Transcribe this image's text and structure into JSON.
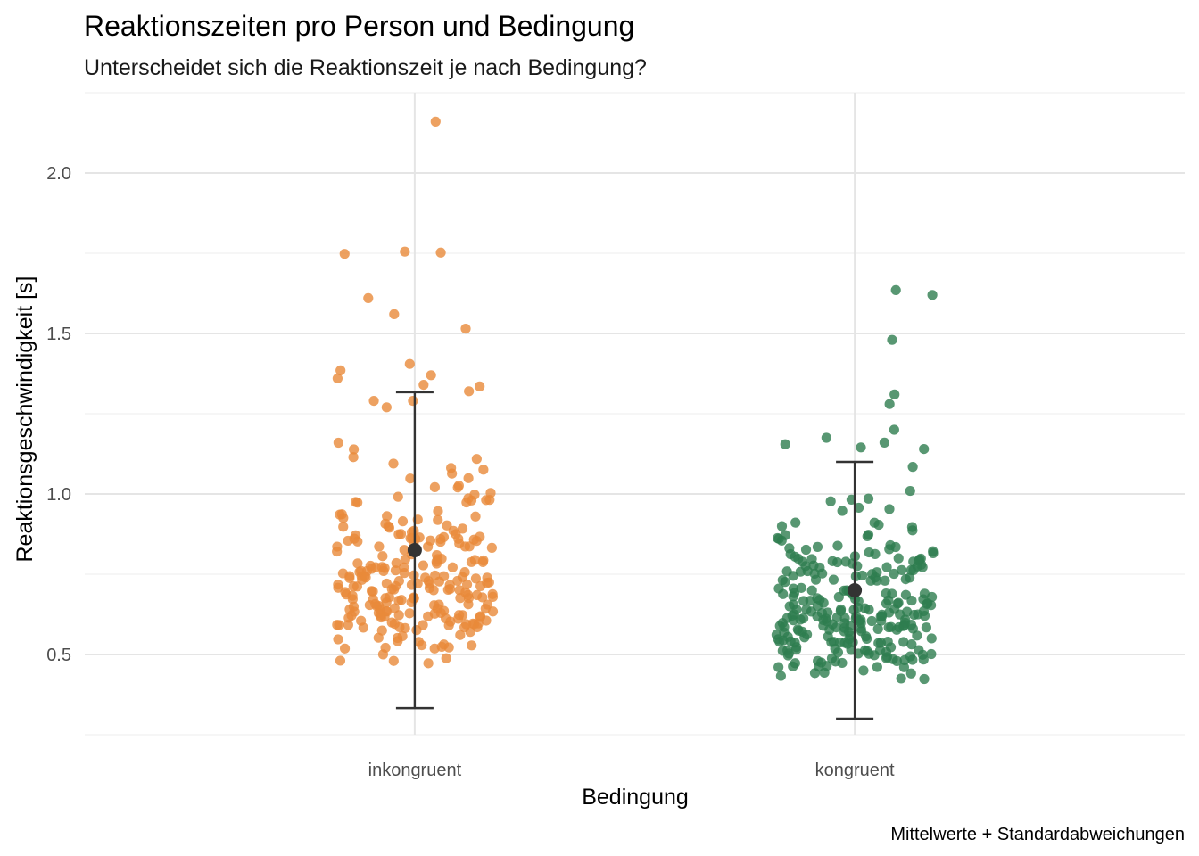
{
  "chart_data": {
    "type": "scatter",
    "title": "Reaktionszeiten pro Person und Bedingung",
    "subtitle": "Unterscheidet sich die Reaktionszeit je nach Bedingung?",
    "xlabel": "Bedingung",
    "ylabel": "Reaktionsgeschwindigkeit [s]",
    "caption": "Mittelwerte + Standardabweichungen",
    "categories": [
      "inkongruent",
      "kongruent"
    ],
    "ylim": [
      0.25,
      2.25
    ],
    "yticks": [
      {
        "value": 0.5,
        "label": "0.5"
      },
      {
        "value": 1.0,
        "label": "1.0"
      },
      {
        "value": 1.5,
        "label": "1.5"
      },
      {
        "value": 2.0,
        "label": "2.0"
      }
    ],
    "grid": true,
    "series": [
      {
        "category": "inkongruent",
        "color": "#E8893A",
        "mean": 0.825,
        "sd_lower": 0.333,
        "sd_upper": 1.317,
        "outliers": [
          2.16,
          1.755,
          1.752,
          1.748,
          1.61,
          1.56,
          1.515,
          1.405,
          1.385,
          1.37,
          1.36,
          1.34,
          1.335,
          1.32,
          1.29,
          1.29,
          1.27
        ],
        "n_bulk": 240,
        "bulk_range": [
          0.47,
          1.25
        ]
      },
      {
        "category": "kongruent",
        "color": "#2E7D4F",
        "mean": 0.7,
        "sd_lower": 0.3,
        "sd_upper": 1.1,
        "outliers": [
          1.635,
          1.62,
          1.48,
          1.31,
          1.28,
          1.2,
          1.175,
          1.16,
          1.155,
          1.145,
          1.14
        ],
        "n_bulk": 260,
        "bulk_range": [
          0.42,
          1.11
        ]
      }
    ],
    "summary_color": "#333333"
  }
}
